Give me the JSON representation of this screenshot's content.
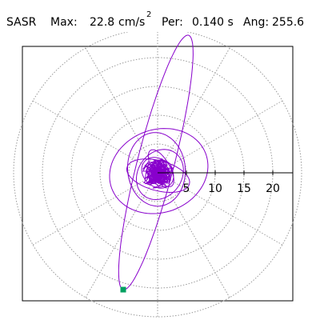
{
  "header": {
    "title": "SASR",
    "max_label": "Max:",
    "max_value": "22.8",
    "max_unit": "cm/s",
    "max_exp": "2",
    "per_label": "Per:",
    "per_value": "0.140 s",
    "ang_label": "Ang:",
    "ang_value": "255.6"
  },
  "chart_data": {
    "type": "polar-orbit",
    "r_max": 25,
    "rings": [
      5,
      10,
      15,
      20,
      25
    ],
    "tick_labels": [
      "5",
      "10",
      "15",
      "20"
    ],
    "grid": true,
    "angle_deg": 255.6,
    "peak_radius": 22.8,
    "colors": {
      "trace": "#8800cc",
      "grid": "#999999",
      "axis": "#000000",
      "marker": "#00a060"
    },
    "orbit_components": [
      {
        "type": "ellipse",
        "cx": -0.3,
        "cy": 1.8,
        "a": 22.8,
        "b": 3.2,
        "angle": 255.6
      },
      {
        "type": "ellipse",
        "cx": 0.2,
        "cy": 0.3,
        "a": 8.7,
        "b": 7.2,
        "angle": 20
      },
      {
        "type": "ellipse",
        "cx": -0.2,
        "cy": 0.6,
        "a": 6.4,
        "b": 5.0,
        "angle": 95
      },
      {
        "type": "ellipse",
        "cx": 0.4,
        "cy": -0.3,
        "a": 4.6,
        "b": 3.8,
        "angle": 55
      },
      {
        "type": "ellipse",
        "cx": 0.0,
        "cy": 0.0,
        "a": 3.0,
        "b": 2.4,
        "angle": 140
      },
      {
        "type": "ellipse",
        "cx": 0.3,
        "cy": 0.5,
        "a": 2.2,
        "b": 1.7,
        "angle": 10
      },
      {
        "type": "ellipse",
        "cx": -0.4,
        "cy": -0.2,
        "a": 1.6,
        "b": 1.1,
        "angle": 75
      },
      {
        "type": "ellipse",
        "cx": 0.1,
        "cy": -0.5,
        "a": 5.6,
        "b": 2.6,
        "angle": 165
      },
      {
        "type": "ellipse",
        "cx": 0.6,
        "cy": 0.8,
        "a": 3.6,
        "b": 1.5,
        "angle": 120
      }
    ]
  }
}
